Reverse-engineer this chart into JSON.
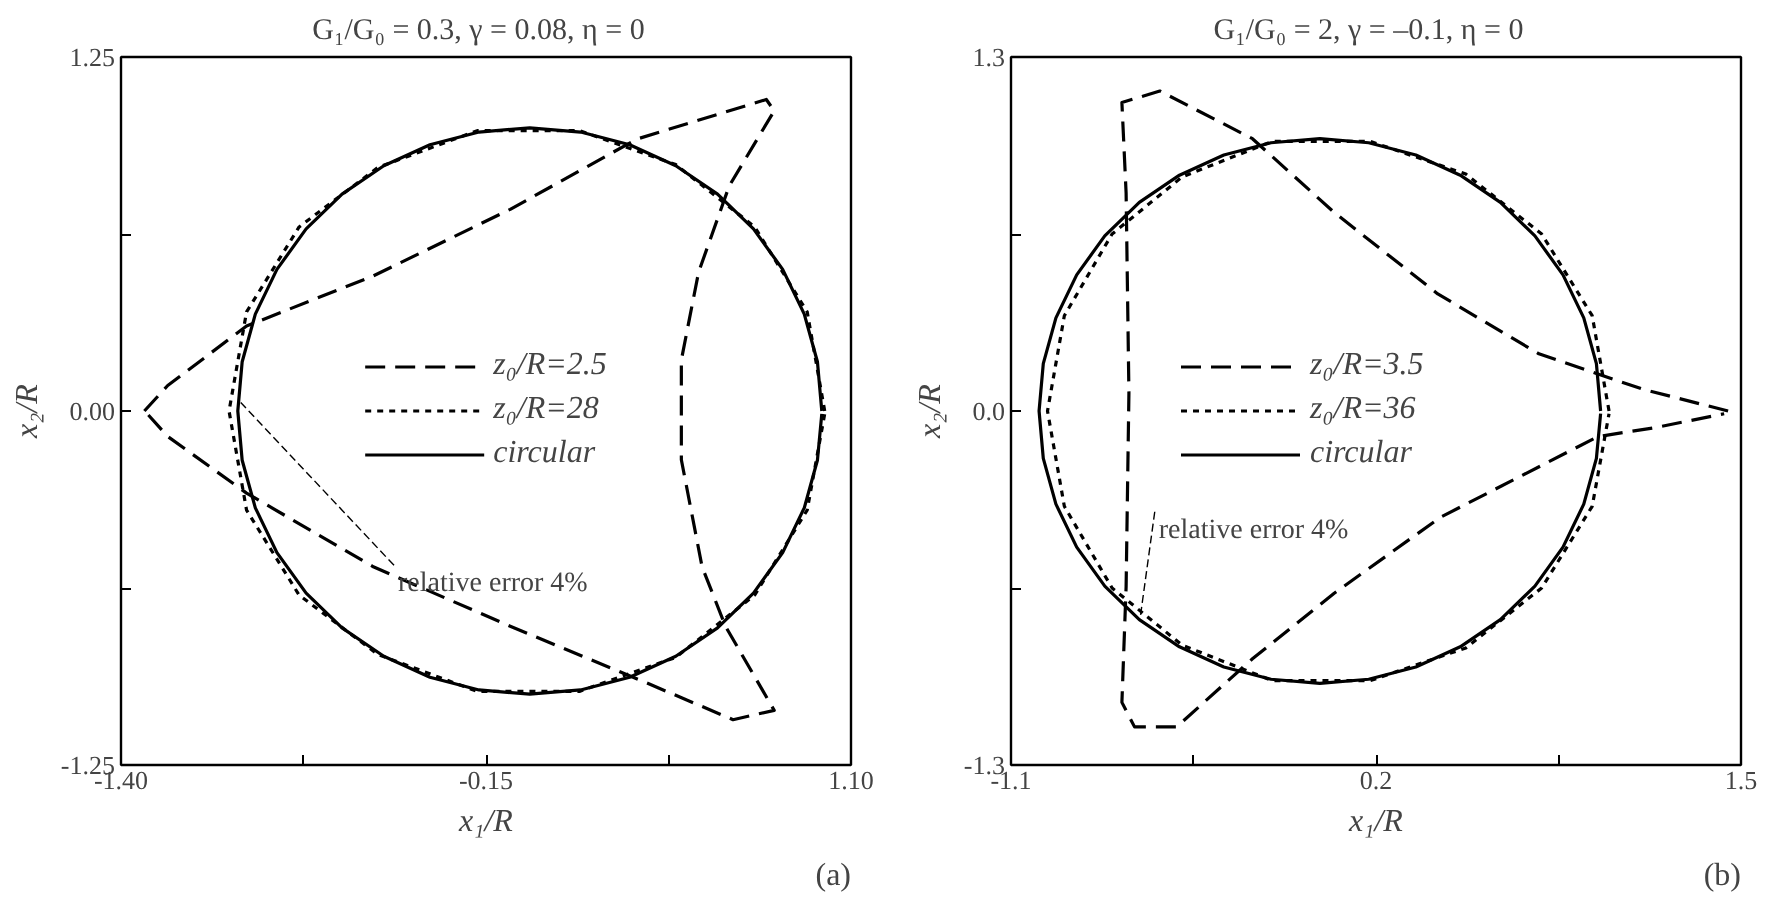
{
  "chart_data": [
    {
      "type": "line",
      "title": "G₁/G₀ = 0.3,  γ = 0.08,  η = 0",
      "xlabel": "x₁/R",
      "ylabel": "x₂/R",
      "xlim": [
        -1.4,
        1.1
      ],
      "xticks": [
        {
          "value": -1.4,
          "label": "-1.40"
        },
        {
          "value": -0.775,
          "label": null
        },
        -0.15,
        {
          "value": 0.475,
          "label": null
        },
        {
          "value": 1.1,
          "label": "1.10"
        }
      ],
      "ylim": [
        -1.25,
        1.25
      ],
      "yticks": [
        -1.25,
        {
          "value": -0.625,
          "label": null
        },
        {
          "value": 0,
          "label": "0.00"
        },
        {
          "value": 0.625,
          "label": null
        },
        1.25
      ],
      "grid": false,
      "legend": "center",
      "marker": "none",
      "annotations": [
        {
          "text": "relative error 4%",
          "x": -0.99,
          "y": 0.03
        },
        "(a)"
      ],
      "series": [
        {
          "name": "z₀/R=2.5",
          "color": "#000000",
          "line_style": "dashed",
          "x": [
            -1.32,
            -1.24,
            -0.97,
            -0.536,
            -0.067,
            0.366,
            0.81,
            0.837,
            0.683,
            0.578,
            0.519,
            0.519,
            0.519,
            0.59,
            0.67,
            0.837,
            0.696,
            0.4,
            -0.067,
            -0.536,
            -0.97,
            -1.24,
            -1.31
          ],
          "values": [
            0,
            0.09,
            0.3,
            0.477,
            0.712,
            0.96,
            1.1,
            1.06,
            0.795,
            0.49,
            0.18,
            -0.03,
            -0.172,
            -0.55,
            -0.76,
            -1.057,
            -1.09,
            -0.96,
            -0.76,
            -0.55,
            -0.29,
            -0.09,
            -0.01
          ]
        },
        {
          "name": "z₀/R=28",
          "color": "#000000",
          "line_style": "dotted",
          "x": [
            1.01,
            0.95,
            0.77,
            0.5,
            0.17,
            -0.18,
            -0.52,
            -0.79,
            -0.97,
            -1.03,
            -0.97,
            -0.79,
            -0.52,
            -0.18,
            0.17,
            0.5,
            0.77,
            0.95,
            1.01
          ],
          "values": [
            0,
            0.35,
            0.65,
            0.87,
            0.99,
            0.99,
            0.86,
            0.65,
            0.35,
            0,
            -0.35,
            -0.65,
            -0.86,
            -0.99,
            -0.99,
            -0.87,
            -0.65,
            -0.35,
            -0.01
          ]
        },
        {
          "name": "circular",
          "color": "#000000",
          "line_style": "solid",
          "x": [
            1,
            0.985,
            0.94,
            0.866,
            0.766,
            0.643,
            0.5,
            0.342,
            0.174,
            0,
            -0.174,
            -0.342,
            -0.5,
            -0.643,
            -0.766,
            -0.866,
            -0.94,
            -0.985,
            -1,
            -0.985,
            -0.94,
            -0.866,
            -0.766,
            -0.643,
            -0.5,
            -0.342,
            -0.174,
            0,
            0.174,
            0.342,
            0.5,
            0.643,
            0.766,
            0.866,
            0.94,
            0.985,
            1
          ],
          "values": [
            0,
            0.174,
            0.342,
            0.5,
            0.643,
            0.766,
            0.866,
            0.94,
            0.985,
            1,
            0.985,
            0.94,
            0.866,
            0.766,
            0.643,
            0.5,
            0.342,
            0.174,
            0,
            -0.174,
            -0.342,
            -0.5,
            -0.643,
            -0.766,
            -0.866,
            -0.94,
            -0.985,
            -1,
            -0.985,
            -0.94,
            -0.866,
            -0.766,
            -0.643,
            -0.5,
            -0.342,
            -0.174,
            -0.01
          ]
        }
      ]
    },
    {
      "type": "line",
      "title": "G₁/G₀ = 2,  γ = –0.1,  η = 0",
      "xlabel": "x₁/R",
      "ylabel": "x₂/R",
      "xlim": [
        -1.1,
        1.5
      ],
      "xticks": [
        -1.1,
        {
          "value": -0.45,
          "label": null
        },
        0.2,
        {
          "value": 0.85,
          "label": null
        },
        1.5
      ],
      "ylim": [
        -1.3,
        1.3
      ],
      "yticks": [
        -1.3,
        {
          "value": -0.65,
          "label": null
        },
        {
          "value": 0,
          "label": "0.0"
        },
        {
          "value": 0.65,
          "label": null
        },
        1.3
      ],
      "grid": false,
      "legend": "left",
      "marker": "none",
      "annotations": [
        {
          "text": "relative error 4%",
          "x": -0.64,
          "y": -0.76
        },
        "(b)"
      ],
      "series": [
        {
          "name": "z₀/R=3.5",
          "color": "#000000",
          "line_style": "dashed",
          "x": [
            1.454,
            1.15,
            0.78,
            0.42,
            0.05,
            -0.24,
            -0.57,
            -0.705,
            -0.69,
            -0.68,
            -0.69,
            -0.705,
            -0.66,
            -0.51,
            -0.24,
            0.05,
            0.43,
            0.99,
            1.2,
            1.44
          ],
          "values": [
            0,
            0.08,
            0.21,
            0.43,
            0.73,
            1.0,
            1.175,
            1.133,
            0.8,
            0.066,
            -0.645,
            -1.07,
            -1.16,
            -1.16,
            -0.91,
            -0.67,
            -0.39,
            -0.094,
            -0.06,
            -0.01
          ]
        },
        {
          "name": "z₀/R=36",
          "color": "#000000",
          "line_style": "dotted",
          "x": [
            1.03,
            0.97,
            0.79,
            0.52,
            0.18,
            -0.17,
            -0.49,
            -0.74,
            -0.91,
            -0.97,
            -0.91,
            -0.74,
            -0.49,
            -0.17,
            0.18,
            0.52,
            0.79,
            0.97,
            1.03
          ],
          "values": [
            0,
            0.35,
            0.65,
            0.87,
            0.99,
            0.99,
            0.86,
            0.65,
            0.35,
            0,
            -0.35,
            -0.65,
            -0.86,
            -0.99,
            -0.99,
            -0.87,
            -0.65,
            -0.35,
            -0.01
          ]
        },
        {
          "name": "circular",
          "color": "#000000",
          "line_style": "solid",
          "x": [
            1,
            0.985,
            0.94,
            0.866,
            0.766,
            0.643,
            0.5,
            0.342,
            0.174,
            0,
            -0.174,
            -0.342,
            -0.5,
            -0.643,
            -0.766,
            -0.866,
            -0.94,
            -0.985,
            -1,
            -0.985,
            -0.94,
            -0.866,
            -0.766,
            -0.643,
            -0.5,
            -0.342,
            -0.174,
            0,
            0.174,
            0.342,
            0.5,
            0.643,
            0.766,
            0.866,
            0.94,
            0.985,
            1
          ],
          "values": [
            0,
            0.174,
            0.342,
            0.5,
            0.643,
            0.766,
            0.866,
            0.94,
            0.985,
            1,
            0.985,
            0.94,
            0.866,
            0.766,
            0.643,
            0.5,
            0.342,
            0.174,
            0,
            -0.174,
            -0.342,
            -0.5,
            -0.643,
            -0.766,
            -0.866,
            -0.94,
            -0.985,
            -1,
            -0.985,
            -0.94,
            -0.866,
            -0.766,
            -0.643,
            -0.5,
            -0.342,
            -0.174,
            -0.01
          ]
        }
      ]
    }
  ]
}
